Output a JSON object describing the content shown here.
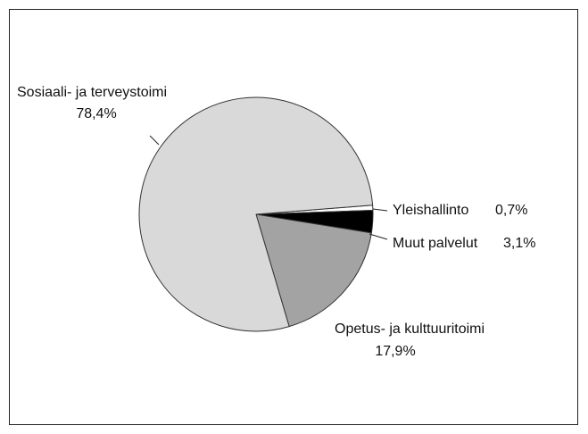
{
  "chart_data": {
    "type": "pie",
    "categories": [
      "Yleishallinto",
      "Muut palvelut",
      "Opetus- ja kulttuuritoimi",
      "Sosiaali- ja terveystoimi"
    ],
    "values": [
      0.7,
      3.1,
      17.9,
      78.4
    ],
    "value_labels": [
      "0,7%",
      "3,1%",
      "17,9%",
      "78,4%"
    ],
    "colors": [
      "#ffffff",
      "#000000",
      "#a3a3a3",
      "#d9d9d9"
    ]
  }
}
